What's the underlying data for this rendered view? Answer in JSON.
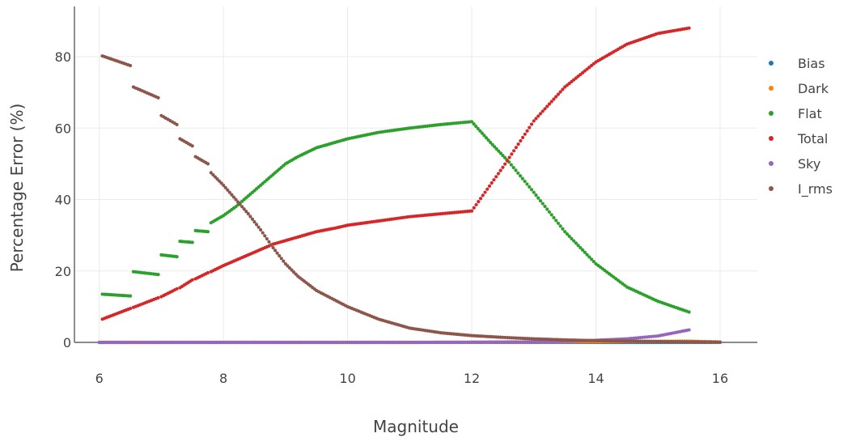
{
  "chart_data": {
    "type": "scatter",
    "title": "",
    "xlabel": "Magnitude",
    "ylabel": "Percentage Error (%)",
    "xlim": [
      5.6,
      16.6
    ],
    "ylim": [
      -1,
      90
    ],
    "xticks": [
      6,
      8,
      10,
      12,
      14,
      16
    ],
    "yticks": [
      0,
      20,
      40,
      60,
      80
    ],
    "grid": true,
    "legend_position": "right",
    "series": [
      {
        "name": "Bias",
        "color": "#1f77b4",
        "x": [
          6,
          7,
          8,
          9,
          10,
          11,
          12,
          13,
          14,
          15,
          15.5,
          16
        ],
        "y": [
          0,
          0,
          0,
          0,
          0,
          0,
          0,
          0,
          0,
          0,
          0,
          0
        ]
      },
      {
        "name": "Dark",
        "color": "#ff7f0e",
        "x": [
          6,
          7,
          8,
          9,
          10,
          11,
          12,
          13,
          14,
          15,
          15.5,
          16
        ],
        "y": [
          0,
          0,
          0,
          0,
          0,
          0,
          0.05,
          0.1,
          0.2,
          0.3,
          0.35,
          0.1
        ]
      },
      {
        "name": "Flat",
        "color": "#2ca02c",
        "x": [
          6.05,
          6.5,
          6.55,
          6.95,
          7.0,
          7.25,
          7.3,
          7.5,
          7.55,
          7.75,
          7.8,
          8.0,
          8.2,
          8.4,
          8.6,
          8.8,
          9.0,
          9.2,
          9.5,
          9.8,
          10.0,
          10.5,
          11.0,
          11.5,
          12.0,
          12.3,
          12.6,
          13.0,
          13.5,
          14.0,
          14.5,
          15.0,
          15.5
        ],
        "y": [
          13.5,
          13.0,
          19.8,
          19.0,
          24.5,
          24.0,
          28.3,
          28.0,
          31.3,
          31.0,
          33.5,
          35.5,
          38.0,
          41.0,
          44.0,
          47.0,
          50.0,
          52.0,
          54.5,
          56.0,
          57.0,
          58.8,
          60.0,
          61.0,
          61.8,
          56.0,
          50.5,
          42.0,
          31.0,
          22.0,
          15.5,
          11.5,
          8.5
        ]
      },
      {
        "name": "Total",
        "color": "#d62728",
        "x": [
          6.05,
          6.5,
          6.55,
          6.95,
          7.0,
          7.25,
          7.3,
          7.5,
          7.55,
          7.75,
          7.8,
          8.0,
          8.2,
          8.4,
          8.6,
          8.8,
          9.0,
          9.2,
          9.5,
          9.8,
          10.0,
          10.5,
          11.0,
          11.5,
          12.0,
          12.5,
          13.0,
          13.5,
          14.0,
          14.5,
          15.0,
          15.5
        ],
        "y": [
          6.5,
          9.5,
          9.8,
          12.5,
          12.8,
          15.0,
          15.3,
          17.5,
          17.8,
          19.5,
          19.8,
          21.5,
          23.0,
          24.5,
          26.0,
          27.5,
          28.5,
          29.5,
          31.0,
          32.0,
          32.8,
          34.0,
          35.2,
          36.0,
          36.8,
          49.0,
          62.0,
          71.5,
          78.5,
          83.5,
          86.5,
          88.0
        ]
      },
      {
        "name": "Sky",
        "color": "#9467bd",
        "x": [
          6,
          7,
          8,
          9,
          10,
          11,
          12,
          12.5,
          13,
          13.5,
          14,
          14.5,
          15,
          15.5
        ],
        "y": [
          0,
          0,
          0,
          0,
          0,
          0,
          0.05,
          0.1,
          0.15,
          0.3,
          0.6,
          1.0,
          1.8,
          3.5
        ]
      },
      {
        "name": "I_rms",
        "color": "#8c564b",
        "x": [
          6.05,
          6.5,
          6.55,
          6.95,
          7.0,
          7.25,
          7.3,
          7.5,
          7.55,
          7.75,
          7.8,
          8.0,
          8.2,
          8.4,
          8.6,
          8.8,
          9.0,
          9.2,
          9.5,
          10.0,
          10.5,
          11.0,
          11.5,
          12.0,
          12.5,
          13.0,
          13.5,
          14.0,
          14.5,
          15.0,
          15.5,
          16.0
        ],
        "y": [
          80.2,
          77.5,
          71.5,
          68.5,
          63.5,
          61.0,
          57.0,
          55.0,
          52.0,
          50.0,
          47.5,
          44.0,
          40.0,
          36.0,
          31.5,
          26.5,
          22.0,
          18.5,
          14.5,
          10.0,
          6.5,
          4.0,
          2.7,
          1.9,
          1.4,
          1.0,
          0.7,
          0.5,
          0.35,
          0.25,
          0.15,
          0.1
        ]
      }
    ]
  }
}
